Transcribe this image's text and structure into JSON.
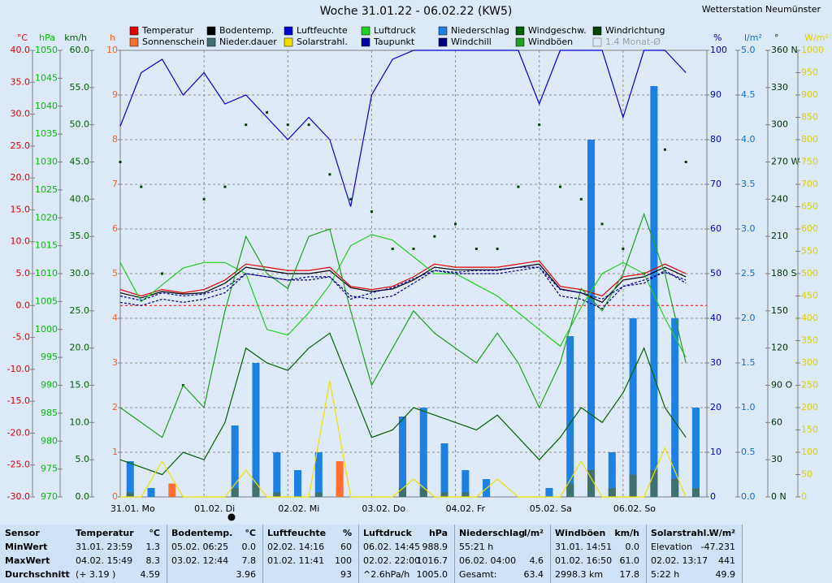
{
  "chart_data": {
    "type": "line",
    "title": "Woche 31.01.22 - 06.02.22 (KW5)",
    "station": "Wetterstation Neumünster",
    "legend_extra": "1.4 Monat-Ø",
    "categories": [
      "31.01. Mo",
      null,
      null,
      null,
      "01.02. Di",
      null,
      null,
      null,
      "02.02. Mi",
      null,
      null,
      null,
      "03.02. Do",
      null,
      null,
      null,
      "04.02. Fr",
      null,
      null,
      null,
      "05.02. Sa",
      null,
      null,
      null,
      "06.02. So",
      null,
      null,
      null
    ],
    "axes": [
      {
        "id": "C",
        "title": "°C",
        "color": "#e00000",
        "lim": [
          -30,
          40
        ],
        "ticks": [
          {
            "value": -30,
            "label": "-30.0"
          },
          {
            "value": -25,
            "label": "-25.0"
          },
          {
            "value": -20,
            "label": "-20.0"
          },
          {
            "value": -15,
            "label": "-15.0"
          },
          {
            "value": -10,
            "label": "-10.0"
          },
          {
            "value": -5,
            "label": "-5.0"
          },
          {
            "value": 0,
            "label": "0.0"
          },
          {
            "value": 5,
            "label": "5.0"
          },
          {
            "value": 10,
            "label": "10.0"
          },
          {
            "value": 15,
            "label": "15.0"
          },
          {
            "value": 20,
            "label": "20.0"
          },
          {
            "value": 25,
            "label": "25.0"
          },
          {
            "value": 30,
            "label": "30.0"
          },
          {
            "value": 35,
            "label": "35.0"
          },
          {
            "value": 40,
            "label": "40.0"
          }
        ]
      },
      {
        "id": "hPa",
        "title": "hPa",
        "color": "#00c000",
        "lim": [
          970,
          1050
        ],
        "ticks": [
          970,
          975,
          980,
          985,
          990,
          995,
          1000,
          1005,
          1010,
          1015,
          1020,
          1025,
          1030,
          1035,
          1040,
          1045,
          1050
        ]
      },
      {
        "id": "kmh",
        "title": "km/h",
        "color": "#006000",
        "lim": [
          0,
          60
        ],
        "ticks": [
          {
            "value": 0,
            "label": "0.0"
          },
          {
            "value": 5,
            "label": "5.0"
          },
          {
            "value": 10,
            "label": "10.0"
          },
          {
            "value": 15,
            "label": "15.0"
          },
          {
            "value": 20,
            "label": "20.0"
          },
          {
            "value": 25,
            "label": "25.0"
          },
          {
            "value": 30,
            "label": "30.0"
          },
          {
            "value": 35,
            "label": "35.0"
          },
          {
            "value": 40,
            "label": "40.0"
          },
          {
            "value": 45,
            "label": "45.0"
          },
          {
            "value": 50,
            "label": "50.0"
          },
          {
            "value": 55,
            "label": "55.0"
          },
          {
            "value": 60,
            "label": "60.0"
          }
        ]
      },
      {
        "id": "h",
        "title": "h",
        "color": "#ff6020",
        "lim": [
          0,
          10
        ],
        "ticks": [
          0,
          1,
          2,
          3,
          4,
          5,
          6,
          7,
          8,
          9,
          10
        ]
      },
      {
        "id": "pct",
        "title": "%",
        "color": "#0000d0",
        "lim": [
          0,
          100
        ],
        "ticks": [
          0,
          10,
          20,
          30,
          40,
          50,
          60,
          70,
          80,
          90,
          100
        ]
      },
      {
        "id": "lm2",
        "title": "l/m²",
        "color": "#1070d0",
        "lim": [
          0,
          5
        ],
        "ticks": [
          {
            "value": 0,
            "label": "0.0"
          },
          {
            "value": 0.5,
            "label": "0.5"
          },
          {
            "value": 1,
            "label": "1.0"
          },
          {
            "value": 1.5,
            "label": "1.5"
          },
          {
            "value": 2,
            "label": "2.0"
          },
          {
            "value": 2.5,
            "label": "2.5"
          },
          {
            "value": 3,
            "label": "3.0"
          },
          {
            "value": 3.5,
            "label": "3.5"
          },
          {
            "value": 4,
            "label": "4.0"
          },
          {
            "value": 4.5,
            "label": "4.5"
          },
          {
            "value": 5,
            "label": "5.0"
          }
        ]
      },
      {
        "id": "deg",
        "title": "°",
        "color": "#003000",
        "lim": [
          0,
          360
        ],
        "ticks": [
          {
            "value": 0,
            "label": "0 N"
          },
          30,
          60,
          {
            "value": 90,
            "label": "90 O"
          },
          120,
          150,
          {
            "value": 180,
            "label": "180 S"
          },
          210,
          240,
          {
            "value": 270,
            "label": "270 W"
          },
          300,
          330,
          {
            "value": 360,
            "label": "360 N"
          }
        ]
      },
      {
        "id": "wm2",
        "title": "W/m²",
        "color": "#e0d000",
        "lim": [
          0,
          1000
        ],
        "ticks": [
          0,
          50,
          100,
          150,
          200,
          250,
          300,
          350,
          400,
          450,
          500,
          550,
          600,
          650,
          700,
          750,
          800,
          850,
          900,
          950,
          1000
        ]
      }
    ],
    "series": [
      {
        "name": "Temperatur",
        "color": "#e00000",
        "axis": "C",
        "kind": "line",
        "values": [
          2.5,
          1.5,
          2.5,
          2.0,
          2.5,
          4.0,
          6.5,
          6.0,
          5.5,
          5.5,
          6.0,
          3.0,
          2.5,
          3.0,
          4.5,
          6.5,
          6.0,
          6.0,
          6.0,
          6.5,
          7.0,
          3.0,
          2.5,
          1.5,
          4.5,
          5.0,
          6.5,
          5.0
        ]
      },
      {
        "name": "Bodentemp.",
        "color": "#000000",
        "axis": "C",
        "kind": "line",
        "values": [
          2.0,
          1.2,
          2.2,
          1.8,
          2.0,
          3.5,
          6.0,
          5.5,
          5.0,
          5.0,
          5.5,
          2.8,
          2.2,
          2.6,
          4.0,
          6.0,
          5.6,
          5.6,
          5.6,
          6.0,
          6.5,
          2.6,
          2.0,
          0.5,
          4.0,
          4.5,
          6.0,
          4.5
        ]
      },
      {
        "name": "Luftfeuchte",
        "color": "#0000d0",
        "axis": "pct",
        "kind": "line",
        "values": [
          83,
          95,
          98,
          90,
          95,
          88,
          90,
          85,
          80,
          85,
          80,
          65,
          90,
          98,
          100,
          100,
          100,
          100,
          100,
          100,
          88,
          100,
          100,
          100,
          85,
          100,
          100,
          95
        ]
      },
      {
        "name": "Luftdruck",
        "color": "#20d020",
        "axis": "hPa",
        "kind": "line",
        "values": [
          1012,
          1005,
          1008,
          1011,
          1012,
          1012,
          1010,
          1000,
          999,
          1003,
          1008,
          1015,
          1017,
          1016,
          1013,
          1010,
          1010,
          1008,
          1006,
          1003,
          1000,
          997,
          1004,
          1010,
          1012,
          1010,
          1002,
          995
        ]
      },
      {
        "name": "Niederschlag",
        "color": "#1e80e0",
        "axis": "lm2",
        "kind": "bar",
        "values": [
          0.4,
          0.1,
          0,
          0,
          0,
          0.8,
          1.5,
          0.5,
          0.3,
          0.5,
          0.1,
          0,
          0,
          0.9,
          1.0,
          0.6,
          0.3,
          0.2,
          0,
          0,
          0.1,
          1.8,
          4.0,
          0.5,
          2.0,
          4.6,
          2.0,
          1.0
        ]
      },
      {
        "name": "Windgeschw.",
        "color": "#006000",
        "axis": "kmh",
        "kind": "line",
        "values": [
          5,
          4,
          3,
          6,
          5,
          10,
          20,
          18,
          17,
          20,
          22,
          15,
          8,
          9,
          12,
          11,
          10,
          9,
          11,
          8,
          5,
          8,
          12,
          10,
          14,
          20,
          12,
          8
        ]
      },
      {
        "name": "Windrichtung",
        "color": "#004000",
        "axis": "deg",
        "kind": "dots",
        "values": [
          270,
          250,
          180,
          90,
          240,
          250,
          300,
          310,
          300,
          300,
          260,
          240,
          230,
          200,
          200,
          210,
          220,
          200,
          200,
          250,
          300,
          250,
          240,
          220,
          200,
          180,
          280,
          270
        ]
      },
      {
        "name": "Sonnenschein",
        "color": "#ff7030",
        "axis": "h",
        "kind": "bar",
        "values": [
          0,
          0,
          0.3,
          0,
          0,
          0,
          0.2,
          0,
          0,
          0,
          0.8,
          0,
          0,
          0,
          0,
          0,
          0,
          0,
          0,
          0,
          0,
          0,
          0.3,
          0,
          0,
          0,
          0.4,
          0
        ]
      },
      {
        "name": "Nieder.dauer",
        "color": "#407070",
        "axis": "h",
        "kind": "bar",
        "values": [
          0.1,
          0,
          0,
          0,
          0,
          0.2,
          0.3,
          0.1,
          0,
          0.1,
          0,
          0,
          0,
          0.2,
          0.2,
          0.1,
          0.1,
          0,
          0,
          0,
          0,
          0.3,
          0.6,
          0.2,
          0.5,
          0.6,
          0.4,
          0.2
        ]
      },
      {
        "name": "Solarstrahl.",
        "color": "#f0e000",
        "axis": "wm2",
        "kind": "line",
        "values": [
          0,
          0,
          80,
          0,
          0,
          0,
          60,
          0,
          0,
          0,
          260,
          0,
          0,
          0,
          40,
          0,
          0,
          0,
          40,
          0,
          0,
          0,
          80,
          0,
          0,
          0,
          110,
          0
        ]
      },
      {
        "name": "Taupunkt",
        "color": "#0000a0",
        "axis": "C",
        "kind": "dashed",
        "values": [
          1.5,
          0.8,
          2.0,
          1.5,
          1.8,
          2.8,
          5.0,
          4.5,
          4.0,
          4.5,
          4.5,
          1.0,
          2.0,
          2.8,
          4.2,
          5.5,
          5.2,
          5.5,
          5.5,
          6.0,
          6.0,
          2.5,
          2.0,
          1.0,
          3.0,
          4.0,
          5.2,
          4.0
        ]
      },
      {
        "name": "Windchill",
        "color": "#000080",
        "axis": "C",
        "kind": "dashed",
        "values": [
          0.5,
          0.0,
          1.0,
          0.5,
          1.0,
          2.0,
          5.0,
          4.5,
          4.0,
          4.0,
          4.5,
          1.5,
          1.0,
          1.5,
          3.5,
          5.5,
          5.0,
          5.0,
          5.0,
          5.5,
          6.0,
          1.5,
          1.0,
          -0.5,
          3.0,
          3.5,
          5.5,
          3.5
        ]
      },
      {
        "name": "Windböen",
        "color": "#20a020",
        "axis": "kmh",
        "kind": "line",
        "values": [
          12,
          10,
          8,
          15,
          12,
          25,
          35,
          30,
          28,
          35,
          36,
          25,
          15,
          20,
          25,
          22,
          20,
          18,
          22,
          18,
          12,
          18,
          28,
          25,
          30,
          38,
          30,
          18
        ]
      }
    ]
  },
  "table": {
    "row_labels": [
      "Sensor",
      "MinWert",
      "MaxWert",
      "Durchschnitt"
    ],
    "columns": [
      {
        "title": "Temperatur",
        "unit": "°C",
        "rows": [
          [
            "31.01. 23:59",
            "1.3"
          ],
          [
            "04.02. 15:49",
            "8.3"
          ],
          [
            "(+ 3.19 )",
            "4.59"
          ]
        ]
      },
      {
        "title": "Bodentemp.",
        "unit": "°C",
        "rows": [
          [
            "05.02. 06:25",
            "0.0"
          ],
          [
            "03.02. 12:44",
            "7.8"
          ],
          [
            null,
            "3.96"
          ]
        ]
      },
      {
        "title": "Luftfeuchte",
        "unit": "%",
        "rows": [
          [
            "02.02. 14:16",
            "60"
          ],
          [
            "01.02. 11:41",
            "100"
          ],
          [
            null,
            "93"
          ]
        ]
      },
      {
        "title": "Luftdruck",
        "unit": "hPa",
        "rows": [
          [
            "06.02. 14:45",
            "988.9"
          ],
          [
            "02.02. 22:00",
            "1016.7"
          ],
          [
            "^2.6hPa/h",
            "1005.0"
          ]
        ]
      },
      {
        "title": "Niederschlag",
        "unit": "l/m²",
        "rows": [
          [
            "55:21 h",
            null
          ],
          [
            "06.02. 04:00",
            "4.6"
          ],
          [
            "Gesamt:",
            "63.4"
          ]
        ]
      },
      {
        "title": "Windböen",
        "unit": "km/h",
        "rows": [
          [
            "31.01. 14:51",
            "0.0"
          ],
          [
            "01.02. 16:50",
            "61.0"
          ],
          [
            "2998.3 km",
            "17.8"
          ]
        ]
      },
      {
        "title": "Solarstrahl.",
        "unit": "W/m²",
        "rows": [
          [
            "Elevation",
            "-47.231"
          ],
          [
            "02.02. 13:17",
            "441"
          ],
          [
            "5:22 h",
            "49.9"
          ]
        ]
      }
    ]
  }
}
